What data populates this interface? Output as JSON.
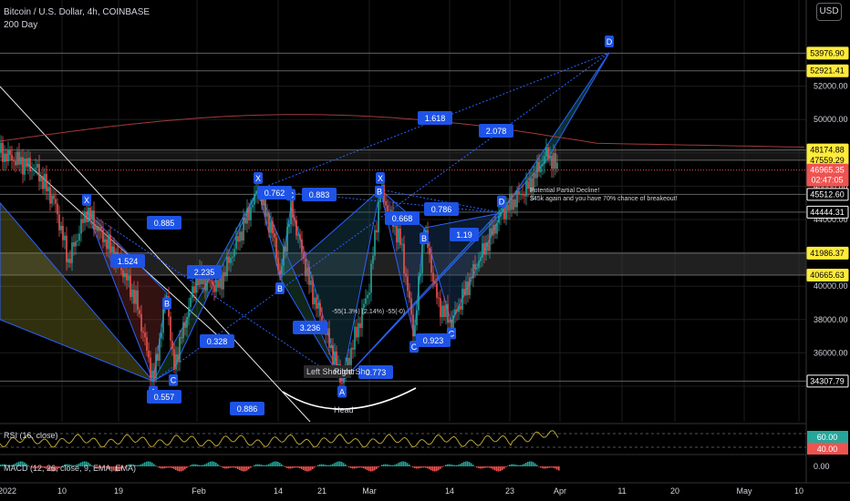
{
  "header": {
    "title": "Bitcoin / U.S. Dollar, 4h, COINBASE",
    "indicator": "200 Day",
    "currency_button": "USD"
  },
  "colors": {
    "background": "#000000",
    "grid": "#1c1c1c",
    "up": "#26a69a",
    "down": "#ef5350",
    "pattern_blue": "#2962ff",
    "label_blue": "#1e53e5",
    "ma_line": "#a13a3a",
    "rsi_line": "#c9b23a",
    "price_tag": "#ef5350"
  },
  "chart_data": [
    {
      "type": "candlestick",
      "title": "Bitcoin / U.S. Dollar, 4h, COINBASE",
      "y_axis": {
        "ticks": [
          36000,
          38000,
          40000,
          44000,
          46000,
          50000,
          52000
        ],
        "tick_labels": [
          "36000.00",
          "38000.00",
          "40000.00",
          "44000.00",
          "46000.00",
          "50000.00",
          "52000.00"
        ]
      },
      "x_axis": {
        "tick_labels": [
          "2022",
          "10",
          "19",
          "Feb",
          "14",
          "21",
          "Mar",
          "14",
          "23",
          "Apr",
          "11",
          "20",
          "May",
          "10"
        ]
      },
      "price_levels": [
        {
          "label": "53976.90",
          "value": 53976.9,
          "style": "highlight"
        },
        {
          "label": "52921.41",
          "value": 52921.41,
          "style": "highlight"
        },
        {
          "label": "48174.88",
          "value": 48174.88,
          "style": "highlight"
        },
        {
          "label": "47559.29",
          "value": 47559.29,
          "style": "highlight"
        },
        {
          "label": "46965.35",
          "value": 46965.35,
          "style": "current",
          "countdown": "02:47:05"
        },
        {
          "label": "45512.60",
          "value": 45512.6,
          "style": "white"
        },
        {
          "label": "44444.31",
          "value": 44444.31,
          "style": "white"
        },
        {
          "label": "41986.37",
          "value": 41986.37,
          "style": "highlight"
        },
        {
          "label": "40665.63",
          "value": 40665.63,
          "style": "highlight"
        },
        {
          "label": "34307.79",
          "value": 34307.79,
          "style": "white"
        }
      ],
      "pattern_points": [
        {
          "label": "X",
          "t": 95,
          "price": 44500
        },
        {
          "label": "A",
          "t": 168,
          "price": 34300
        },
        {
          "label": "B",
          "t": 183,
          "price": 39600
        },
        {
          "label": "C",
          "t": 190,
          "price": 35000
        },
        {
          "label": "X",
          "t": 283,
          "price": 45800
        },
        {
          "label": "C",
          "t": 319,
          "price": 44800
        },
        {
          "label": "B",
          "t": 307,
          "price": 40500
        },
        {
          "label": "A",
          "t": 375,
          "price": 34300
        },
        {
          "label": "X",
          "t": 417,
          "price": 45800
        },
        {
          "label": "B",
          "t": 416,
          "price": 45000
        },
        {
          "label": "B",
          "t": 465,
          "price": 43500
        },
        {
          "label": "C",
          "t": 454,
          "price": 37000
        },
        {
          "label": "C",
          "t": 495,
          "price": 37800
        },
        {
          "label": "D",
          "t": 550,
          "price": 44400
        },
        {
          "label": "D",
          "t": 668,
          "price": 54000
        }
      ],
      "ratio_labels": [
        "1.618",
        "2.078",
        "0.762",
        "0.883",
        "0.885",
        "0.668",
        "0.786",
        "1.19",
        "2.235",
        "1.524",
        "0.328",
        "3.236",
        "0.923",
        "0.773",
        "0.557",
        "0.886"
      ],
      "annotations": [
        "Potential Partial Decline!",
        "$45k again and you have 70% chance of breakeout!",
        "Left Shoulder",
        "Right Sho",
        "Head",
        "-55(1.3%) (2.14%) -55(-0)"
      ],
      "rsi": {
        "label": "RSI (16, close)",
        "levels": [
          {
            "label": "60.00",
            "color": "#26a69a"
          },
          {
            "label": "40.00",
            "color": "#ef5350"
          }
        ]
      },
      "macd": {
        "label": "MACD (12, 26, close, 9, EMA, EMA)",
        "axis_label": "0.00"
      }
    }
  ]
}
